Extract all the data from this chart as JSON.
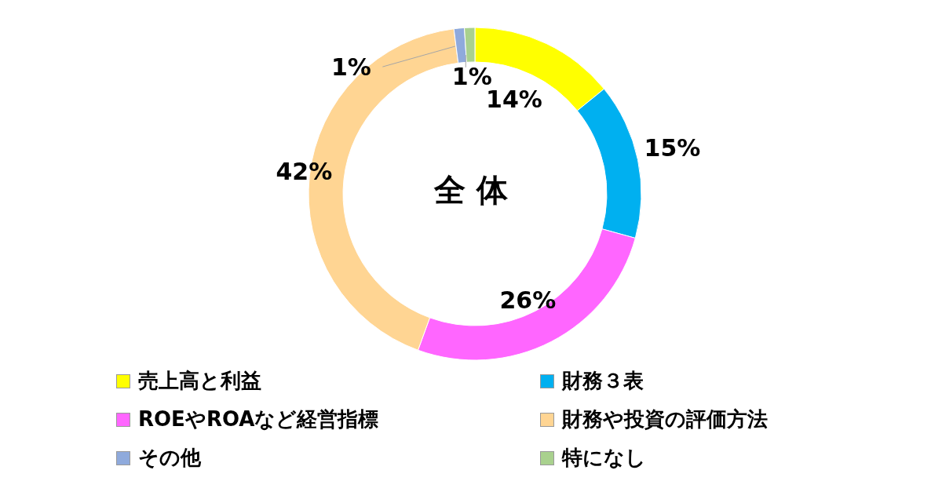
{
  "chart_data": {
    "type": "donut",
    "title": "全 体",
    "categories": [
      "売上高と利益",
      "財務３表",
      "ROEやROAなど経営指標",
      "財務や投資の評価方法",
      "その他",
      "特になし"
    ],
    "values": [
      14,
      15,
      26,
      42,
      1,
      1
    ],
    "colors": [
      "#ffff00",
      "#00b0f0",
      "#ff66ff",
      "#ffd593",
      "#8faadc",
      "#a9d18e"
    ],
    "value_labels": [
      "14%",
      "15%",
      "26%",
      "42%",
      "1%",
      "1%"
    ],
    "legend": "bottom"
  }
}
